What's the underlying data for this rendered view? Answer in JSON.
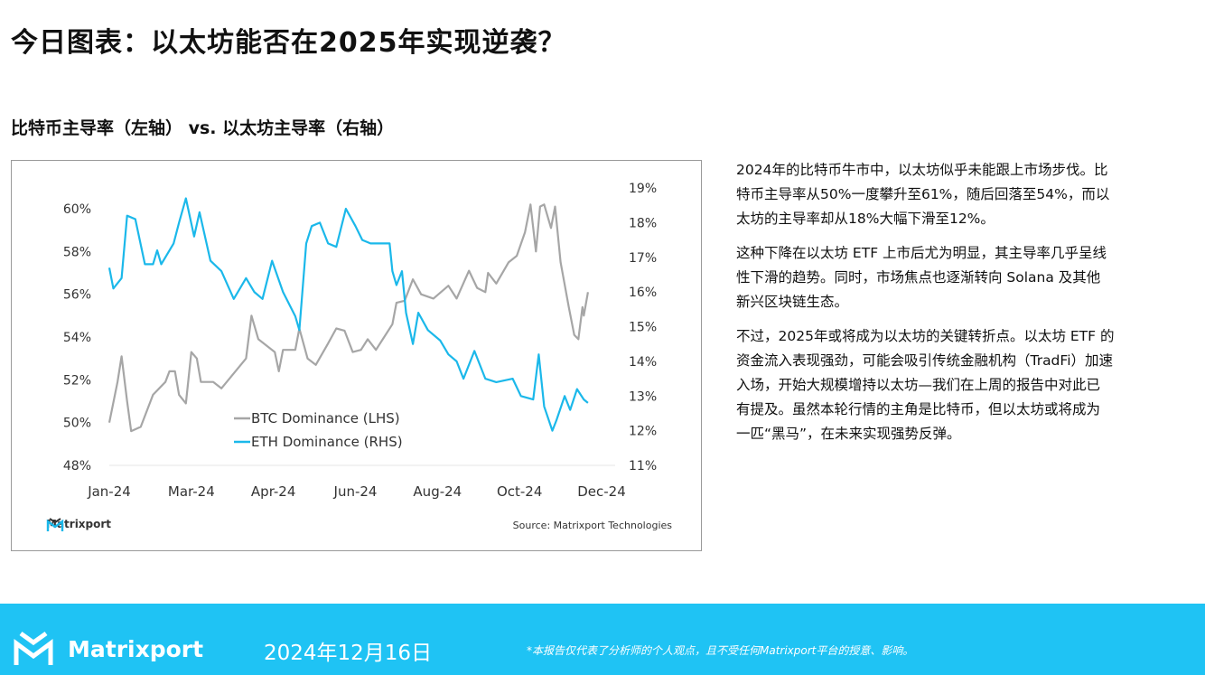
{
  "title": "今日图表：以太坊能否在2025年实现逆袭？",
  "subtitle": "比特币主导率（左轴） vs. 以太坊主导率（右轴）",
  "chart_data": {
    "type": "line",
    "title": "",
    "xlabel": "",
    "ylabel": "",
    "x_range": [
      "2024-01-01",
      "2024-12-26"
    ],
    "x_tick_labels": [
      "Jan-24",
      "Mar-24",
      "Apr-24",
      "Jun-24",
      "Aug-24",
      "Oct-24",
      "Dec-24"
    ],
    "y_left": {
      "range": [
        48,
        60
      ],
      "tick_labels": [
        "48%",
        "50%",
        "52%",
        "54%",
        "56%",
        "58%",
        "60%"
      ]
    },
    "y_right": {
      "range": [
        11,
        19
      ],
      "tick_labels": [
        "11%",
        "12%",
        "13%",
        "14%",
        "15%",
        "16%",
        "17%",
        "18%",
        "19%"
      ]
    },
    "grid": false,
    "legend_position": "bottom-center",
    "series": [
      {
        "name": "BTC Dominance (LHS)",
        "axis": "left",
        "color": "#a6a6a6",
        "points": [
          [
            "2024-01-01",
            50.0
          ],
          [
            "2024-01-07",
            51.9
          ],
          [
            "2024-01-10",
            53.1
          ],
          [
            "2024-01-14",
            51.0
          ],
          [
            "2024-01-17",
            49.6
          ],
          [
            "2024-01-24",
            49.8
          ],
          [
            "2024-02-02",
            51.3
          ],
          [
            "2024-02-11",
            51.9
          ],
          [
            "2024-02-14",
            52.4
          ],
          [
            "2024-02-18",
            52.4
          ],
          [
            "2024-02-21",
            51.3
          ],
          [
            "2024-02-26",
            50.9
          ],
          [
            "2024-03-01",
            53.3
          ],
          [
            "2024-03-05",
            53.0
          ],
          [
            "2024-03-08",
            51.9
          ],
          [
            "2024-03-17",
            51.9
          ],
          [
            "2024-03-23",
            51.6
          ],
          [
            "2024-04-01",
            52.3
          ],
          [
            "2024-04-10",
            53.0
          ],
          [
            "2024-04-14",
            55.0
          ],
          [
            "2024-04-19",
            53.9
          ],
          [
            "2024-05-01",
            53.3
          ],
          [
            "2024-05-04",
            52.4
          ],
          [
            "2024-05-07",
            53.4
          ],
          [
            "2024-05-16",
            53.4
          ],
          [
            "2024-05-19",
            54.4
          ],
          [
            "2024-05-25",
            53.0
          ],
          [
            "2024-05-31",
            52.7
          ],
          [
            "2024-06-09",
            53.7
          ],
          [
            "2024-06-15",
            54.4
          ],
          [
            "2024-06-21",
            54.3
          ],
          [
            "2024-06-27",
            53.3
          ],
          [
            "2024-07-03",
            53.4
          ],
          [
            "2024-07-08",
            53.9
          ],
          [
            "2024-07-14",
            53.4
          ],
          [
            "2024-07-20",
            54.0
          ],
          [
            "2024-07-26",
            54.6
          ],
          [
            "2024-07-29",
            55.6
          ],
          [
            "2024-08-04",
            55.7
          ],
          [
            "2024-08-10",
            56.7
          ],
          [
            "2024-08-16",
            56.0
          ],
          [
            "2024-08-25",
            55.8
          ],
          [
            "2024-09-05",
            56.4
          ],
          [
            "2024-09-11",
            55.8
          ],
          [
            "2024-09-20",
            57.1
          ],
          [
            "2024-09-26",
            56.3
          ],
          [
            "2024-10-02",
            56.1
          ],
          [
            "2024-10-04",
            57.0
          ],
          [
            "2024-10-10",
            56.5
          ],
          [
            "2024-10-19",
            57.5
          ],
          [
            "2024-10-25",
            57.8
          ],
          [
            "2024-10-31",
            58.9
          ],
          [
            "2024-11-04",
            60.2
          ],
          [
            "2024-11-08",
            58.0
          ],
          [
            "2024-11-11",
            60.1
          ],
          [
            "2024-11-14",
            60.2
          ],
          [
            "2024-11-19",
            59.1
          ],
          [
            "2024-11-22",
            60.1
          ],
          [
            "2024-11-26",
            57.5
          ],
          [
            "2024-12-02",
            55.4
          ],
          [
            "2024-12-06",
            54.1
          ],
          [
            "2024-12-09",
            53.9
          ],
          [
            "2024-12-12",
            55.4
          ],
          [
            "2024-12-13",
            55.0
          ],
          [
            "2024-12-16",
            56.1
          ]
        ]
      },
      {
        "name": "ETH Dominance (RHS)",
        "axis": "right",
        "color": "#1bb8ea",
        "points": [
          [
            "2024-01-01",
            16.7
          ],
          [
            "2024-01-04",
            16.1
          ],
          [
            "2024-01-10",
            16.4
          ],
          [
            "2024-01-14",
            18.2
          ],
          [
            "2024-01-20",
            18.1
          ],
          [
            "2024-01-27",
            16.8
          ],
          [
            "2024-02-02",
            16.8
          ],
          [
            "2024-02-05",
            17.2
          ],
          [
            "2024-02-08",
            16.8
          ],
          [
            "2024-02-17",
            17.4
          ],
          [
            "2024-02-21",
            18.0
          ],
          [
            "2024-02-26",
            18.7
          ],
          [
            "2024-03-03",
            17.6
          ],
          [
            "2024-03-07",
            18.3
          ],
          [
            "2024-03-15",
            16.9
          ],
          [
            "2024-03-23",
            16.6
          ],
          [
            "2024-04-01",
            15.8
          ],
          [
            "2024-04-10",
            16.4
          ],
          [
            "2024-04-16",
            16.0
          ],
          [
            "2024-04-22",
            15.8
          ],
          [
            "2024-04-29",
            16.9
          ],
          [
            "2024-05-07",
            16.0
          ],
          [
            "2024-05-16",
            15.3
          ],
          [
            "2024-05-19",
            14.9
          ],
          [
            "2024-05-24",
            17.4
          ],
          [
            "2024-05-28",
            17.9
          ],
          [
            "2024-06-03",
            18.0
          ],
          [
            "2024-06-09",
            17.4
          ],
          [
            "2024-06-15",
            17.3
          ],
          [
            "2024-06-22",
            18.4
          ],
          [
            "2024-06-29",
            17.9
          ],
          [
            "2024-07-04",
            17.5
          ],
          [
            "2024-07-10",
            17.4
          ],
          [
            "2024-07-20",
            17.4
          ],
          [
            "2024-07-24",
            17.4
          ],
          [
            "2024-07-26",
            16.6
          ],
          [
            "2024-07-29",
            16.2
          ],
          [
            "2024-08-02",
            16.6
          ],
          [
            "2024-08-05",
            15.4
          ],
          [
            "2024-08-10",
            14.5
          ],
          [
            "2024-08-14",
            15.4
          ],
          [
            "2024-08-21",
            14.9
          ],
          [
            "2024-08-30",
            14.6
          ],
          [
            "2024-09-05",
            14.2
          ],
          [
            "2024-09-11",
            14.0
          ],
          [
            "2024-09-16",
            13.5
          ],
          [
            "2024-09-24",
            14.3
          ],
          [
            "2024-10-02",
            13.5
          ],
          [
            "2024-10-10",
            13.4
          ],
          [
            "2024-10-22",
            13.5
          ],
          [
            "2024-10-28",
            13.0
          ],
          [
            "2024-11-06",
            12.9
          ],
          [
            "2024-11-10",
            14.2
          ],
          [
            "2024-11-14",
            12.7
          ],
          [
            "2024-11-20",
            12.0
          ],
          [
            "2024-11-23",
            12.3
          ],
          [
            "2024-11-29",
            13.0
          ],
          [
            "2024-12-03",
            12.6
          ],
          [
            "2024-12-08",
            13.2
          ],
          [
            "2024-12-13",
            12.9
          ],
          [
            "2024-12-16",
            12.8
          ]
        ]
      }
    ]
  },
  "chart_footer": {
    "logo_text": "Matrixport",
    "source": "Source: Matrixport Technologies"
  },
  "commentary": {
    "paragraphs": [
      [
        "2024年的比特币牛市中，以太坊似乎未能跟上市场步伐。比",
        "特币主导率从50%一度攀升至61%，随后回落至54%，而以",
        "太坊的主导率却从18%大幅下滑至12%。"
      ],
      [
        "这种下降在以太坊 ETF 上市后尤为明显，其主导率几乎呈线",
        "性下滑的趋势。同时，市场焦点也逐渐转向 Solana 及其他",
        "新兴区块链生态。"
      ],
      [
        "不过，2025年或将成为以太坊的关键转折点。以太坊 ETF 的",
        "资金流入表现强劲，可能会吸引传统金融机构（TradFi）加速",
        "入场，开始大规模增持以太坊—我们在上周的报告中对此已",
        "有提及。虽然本轮行情的主角是比特币，但以太坊或将成为",
        "一匹“黑马”，在未来实现强势反弹。"
      ]
    ]
  },
  "footer": {
    "brand": "Matrixport",
    "date": "2024年12月16日",
    "disclaimer": "*本报告仅代表了分析师的个人观点，且不受任何Matrixport平台的授意、影响。",
    "background_color": "#1fc3f4"
  }
}
